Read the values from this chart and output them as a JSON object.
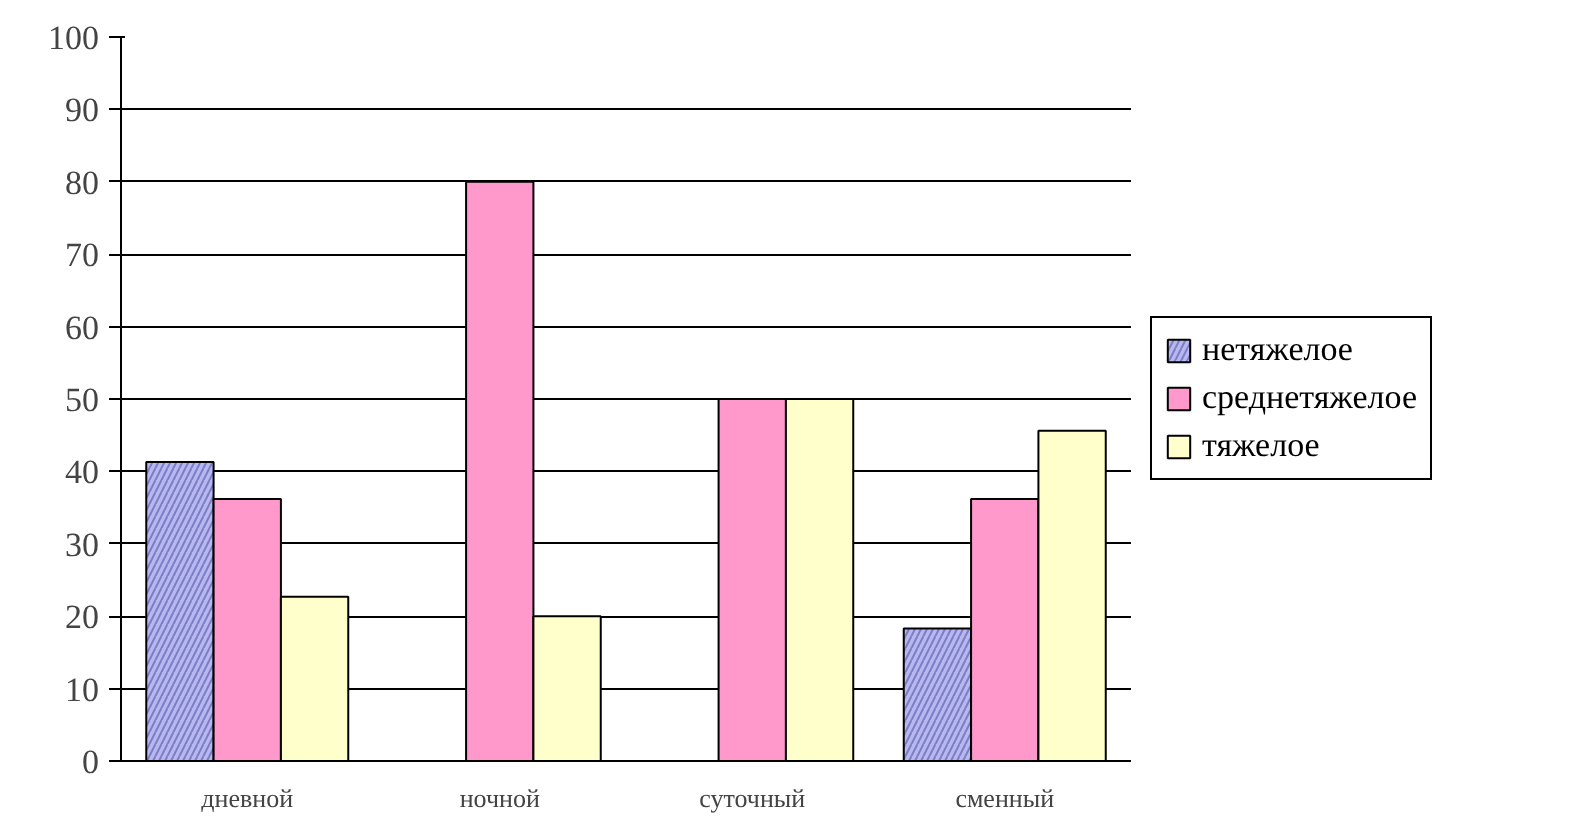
{
  "chart_data": {
    "type": "bar",
    "categories": [
      "дневной",
      "ночной",
      "суточный",
      "сменный"
    ],
    "series": [
      {
        "name": "нетяжелое",
        "color": "#b8b8f0",
        "values": [
          41.3,
          null,
          null,
          18.3
        ]
      },
      {
        "name": "среднетяжелое",
        "color": "#ff99cc",
        "values": [
          36.2,
          80,
          50,
          36.2
        ]
      },
      {
        "name": "тяжелое",
        "color": "#ffffcc",
        "values": [
          22.7,
          20,
          50,
          45.6
        ]
      }
    ],
    "ylim": [
      0,
      100
    ],
    "yticks": [
      0,
      10,
      20,
      30,
      40,
      50,
      60,
      70,
      80,
      90,
      100
    ],
    "grid": "y",
    "legend": "right"
  }
}
